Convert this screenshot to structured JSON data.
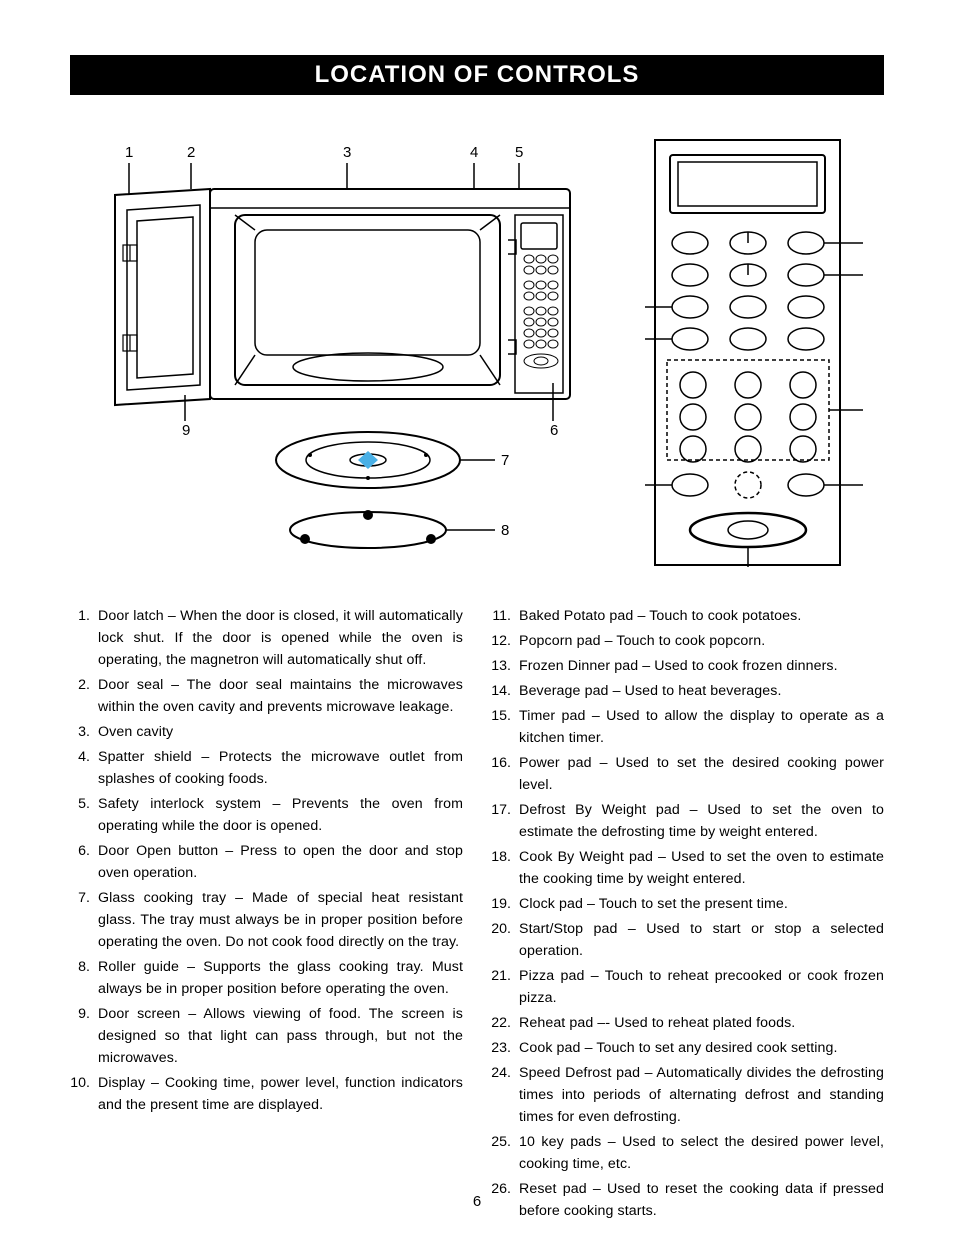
{
  "title": "LOCATION OF CONTROLS",
  "page_number": "6",
  "microwave_diagram": {
    "callouts": [
      "1",
      "2",
      "3",
      "4",
      "5",
      "6",
      "7",
      "8",
      "9"
    ],
    "stroke": "#000000",
    "fill": "#ffffff",
    "accent_fill": "#49b0e6"
  },
  "panel_diagram": {
    "stroke": "#000000",
    "fill": "#ffffff"
  },
  "left_items": [
    {
      "n": "1.",
      "t": "Door latch – When the door is closed, it will automatically lock shut. If the door is opened while the oven is operating, the magnetron will automatically shut off."
    },
    {
      "n": "2.",
      "t": "Door seal – The door seal maintains the microwaves within the oven cavity and prevents microwave leakage."
    },
    {
      "n": "3.",
      "t": "Oven cavity"
    },
    {
      "n": "4.",
      "t": "Spatter shield – Protects the microwave outlet from splashes of cooking foods."
    },
    {
      "n": "5.",
      "t": "Safety interlock system – Prevents the oven from operating while the door is opened."
    },
    {
      "n": "6.",
      "t": "Door Open button – Press to open the door and stop oven operation."
    },
    {
      "n": "7.",
      "t": "Glass cooking tray – Made of special heat resistant glass. The tray must always be in proper position before operating the oven. Do not cook food directly on the tray."
    },
    {
      "n": "8.",
      "t": "Roller guide – Supports the glass cooking tray. Must always be in proper position before operating the oven."
    },
    {
      "n": "9.",
      "t": "Door screen – Allows viewing of food. The screen is designed so that light can pass through, but not the microwaves."
    },
    {
      "n": "10.",
      "t": "Display – Cooking time, power level, function indicators and the present time are displayed."
    }
  ],
  "right_items": [
    {
      "n": "11.",
      "t": "Baked Potato pad – Touch to cook potatoes."
    },
    {
      "n": "12.",
      "t": "Popcorn pad – Touch to cook popcorn."
    },
    {
      "n": "13.",
      "t": "Frozen Dinner pad – Used to cook frozen dinners."
    },
    {
      "n": "14.",
      "t": "Beverage pad – Used to heat beverages."
    },
    {
      "n": "15.",
      "t": "Timer pad – Used to allow the display to operate as a kitchen timer."
    },
    {
      "n": "16.",
      "t": "Power pad – Used to set the desired cooking power level."
    },
    {
      "n": "17.",
      "t": "Defrost By Weight pad – Used to set the oven to estimate the defrosting time by weight entered."
    },
    {
      "n": "18.",
      "t": "Cook By Weight pad – Used to set the oven to estimate the cooking time by weight entered."
    },
    {
      "n": "19.",
      "t": "Clock pad – Touch to set the present time."
    },
    {
      "n": "20.",
      "t": "Start/Stop pad – Used to start or stop a selected operation."
    },
    {
      "n": "21.",
      "t": "Pizza pad – Touch to reheat precooked or cook frozen pizza."
    },
    {
      "n": "22.",
      "t": "Reheat pad –- Used to reheat plated foods."
    },
    {
      "n": "23.",
      "t": "Cook pad – Touch to set any desired cook setting."
    },
    {
      "n": "24.",
      "t": "Speed Defrost pad – Automatically divides the defrosting times into periods of alternating defrost and standing times for even defrosting."
    },
    {
      "n": "25.",
      "t": "10 key pads – Used to select the desired power level, cooking time, etc."
    },
    {
      "n": "26.",
      "t": "Reset pad – Used to reset the cooking data if pressed before cooking starts."
    }
  ]
}
